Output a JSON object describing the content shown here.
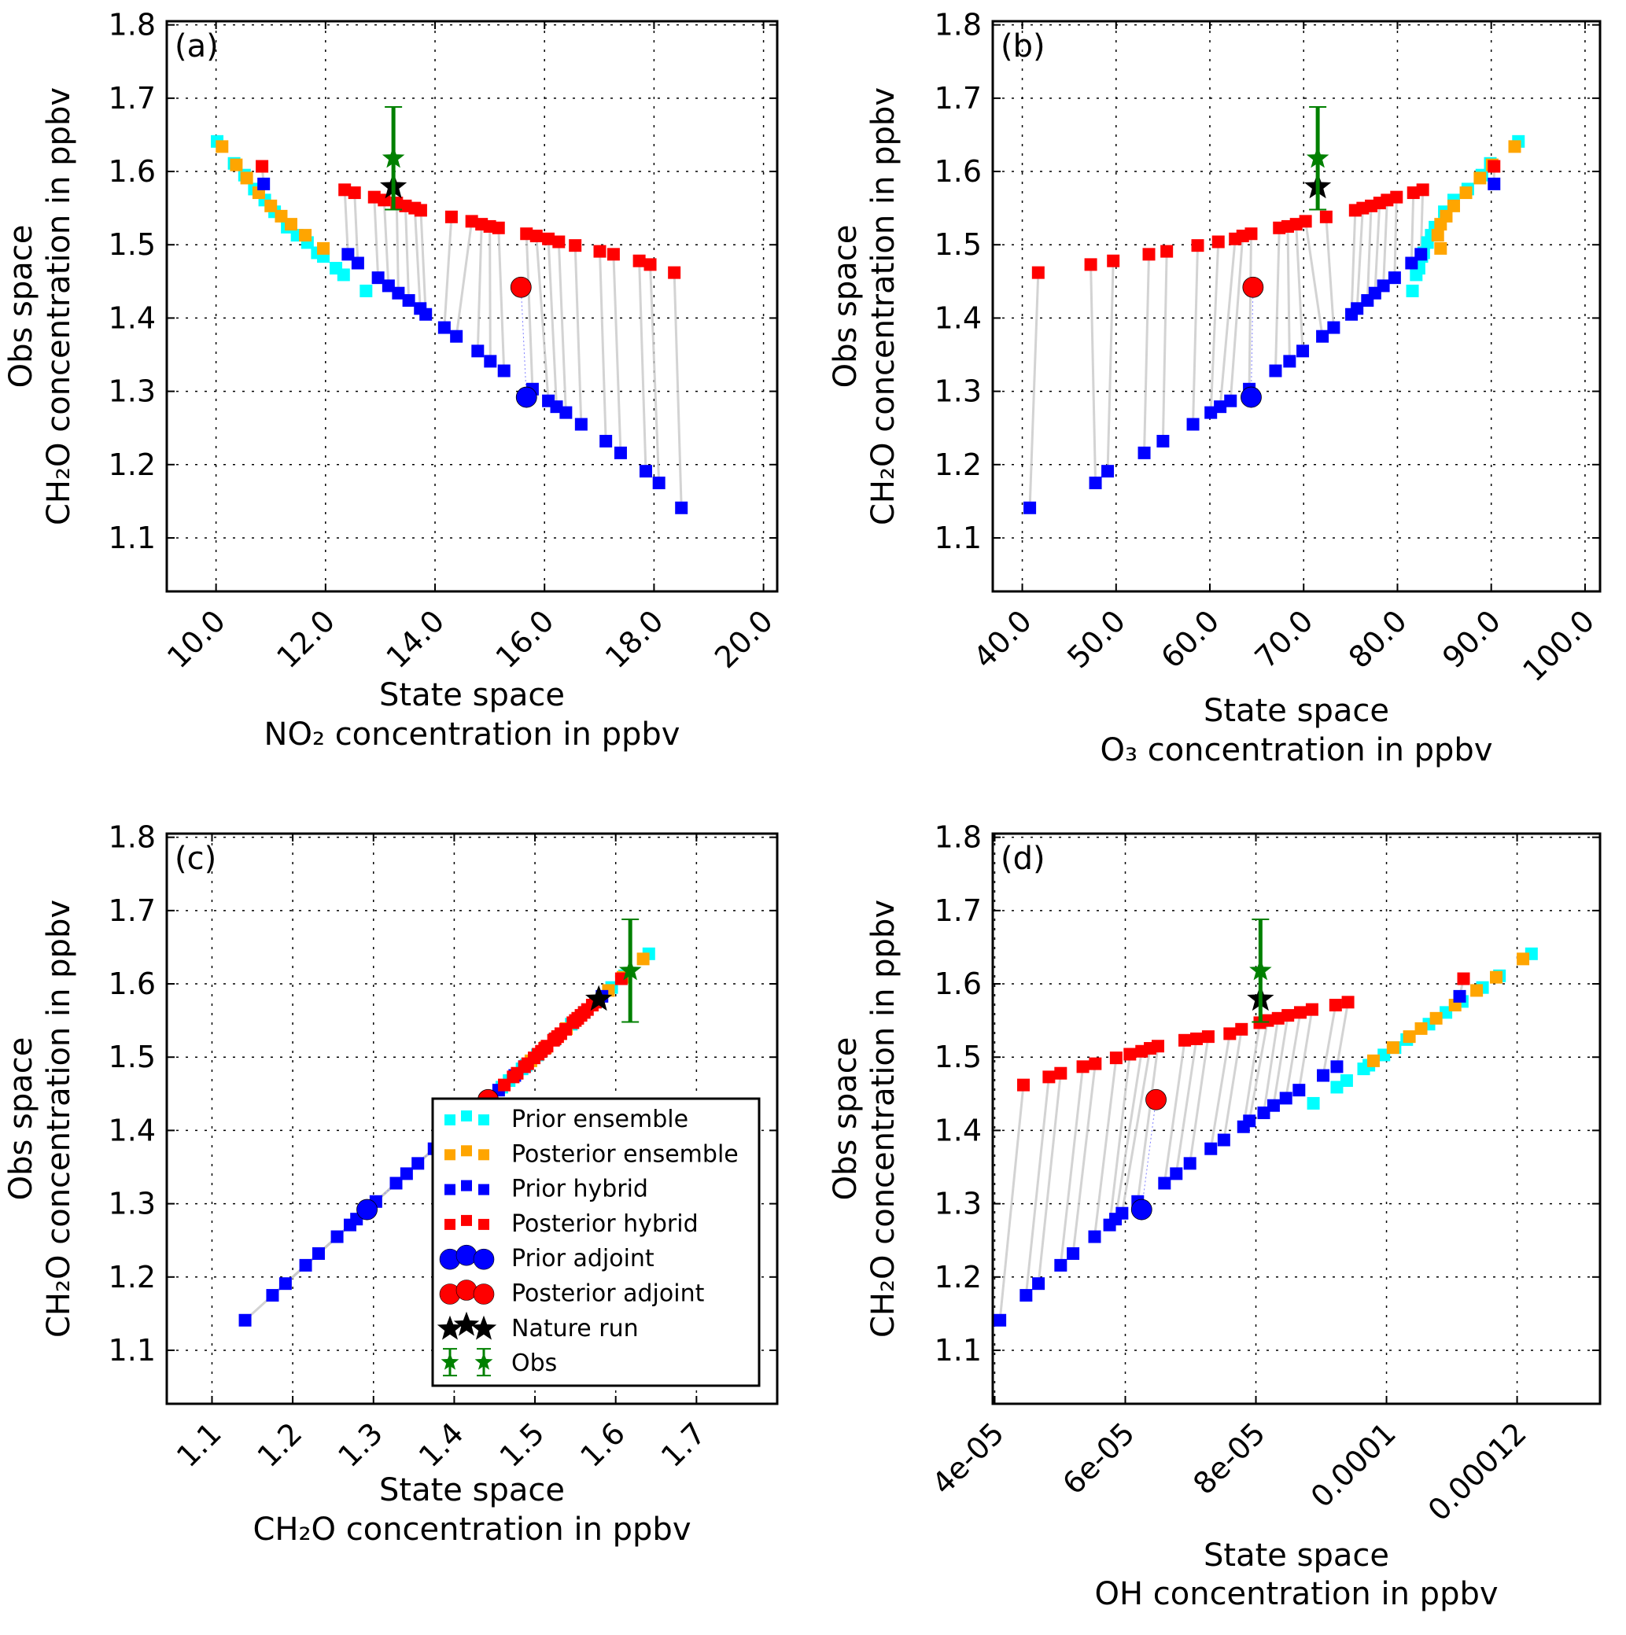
{
  "colors": {
    "prior_ensemble": "#00ffff",
    "posterior_ensemble": "#ffa500",
    "prior_hybrid": "#0000ff",
    "posterior_hybrid": "#ff0000",
    "prior_adjoint": "#0000ff",
    "posterior_adjoint": "#ff0000",
    "nature_run": "#000000",
    "obs": "#008000",
    "connector": "#c8c8c8"
  },
  "chart_data": [
    {
      "panel_label": "(a)",
      "type": "scatter",
      "grid": true,
      "xlabel": [
        "State space",
        "NO₂ concentration in ppbv"
      ],
      "ylabel": [
        "Obs space",
        "CH₂O concentration in ppbv"
      ],
      "xlim": [
        9.1,
        20.25
      ],
      "ylim": [
        1.027,
        1.805
      ],
      "xticks": [
        10,
        12,
        14,
        16,
        18,
        20
      ],
      "xtick_labels": [
        "10.0",
        "12.0",
        "14.0",
        "16.0",
        "18.0",
        "20.0"
      ],
      "yticks": [
        1.1,
        1.2,
        1.3,
        1.4,
        1.5,
        1.6,
        1.7,
        1.8
      ],
      "ytick_labels": [
        "1.1",
        "1.2",
        "1.3",
        "1.4",
        "1.5",
        "1.6",
        "1.7",
        "1.8"
      ],
      "series": [
        {
          "name": "Prior ensemble",
          "x": [
            10.02,
            10.33,
            10.52,
            10.7,
            10.89,
            11.07,
            11.3,
            11.48,
            11.67,
            11.85,
            11.96,
            12.19,
            12.33,
            12.74
          ],
          "y": [
            1.641,
            1.611,
            1.595,
            1.576,
            1.561,
            1.545,
            1.524,
            1.513,
            1.503,
            1.489,
            1.484,
            1.468,
            1.459,
            1.437
          ]
        },
        {
          "name": "Posterior ensemble",
          "x": [
            10.11,
            10.37,
            10.56,
            10.78,
            11.0,
            11.19,
            11.37,
            11.63,
            11.96
          ],
          "y": [
            1.634,
            1.609,
            1.591,
            1.571,
            1.553,
            1.539,
            1.528,
            1.513,
            1.495
          ]
        },
        {
          "name": "Prior hybrid",
          "x": [
            10.87,
            12.41,
            12.59,
            12.96,
            13.15,
            13.33,
            13.52,
            13.73,
            13.83,
            14.17,
            14.39,
            14.78,
            15.01,
            15.26,
            15.78,
            16.07,
            16.22,
            16.39,
            16.67,
            17.12,
            17.39,
            17.85,
            18.09,
            18.5
          ],
          "y": [
            1.583,
            1.487,
            1.475,
            1.455,
            1.444,
            1.434,
            1.424,
            1.413,
            1.405,
            1.387,
            1.375,
            1.355,
            1.341,
            1.328,
            1.303,
            1.287,
            1.279,
            1.271,
            1.255,
            1.232,
            1.216,
            1.191,
            1.175,
            1.141
          ]
        },
        {
          "name": "Posterior hybrid",
          "x": [
            10.84,
            12.35,
            12.53,
            12.89,
            13.07,
            13.3,
            13.46,
            13.63,
            13.74,
            14.3,
            14.67,
            14.85,
            15.0,
            15.16,
            15.67,
            15.85,
            16.07,
            16.26,
            16.56,
            17.01,
            17.26,
            17.73,
            17.93,
            18.37
          ],
          "y": [
            1.607,
            1.575,
            1.571,
            1.565,
            1.561,
            1.557,
            1.553,
            1.55,
            1.547,
            1.538,
            1.532,
            1.528,
            1.525,
            1.523,
            1.515,
            1.512,
            1.508,
            1.504,
            1.499,
            1.491,
            1.487,
            1.478,
            1.473,
            1.462
          ]
        },
        {
          "name": "Prior adjoint",
          "x": [
            15.67
          ],
          "y": [
            1.292
          ]
        },
        {
          "name": "Posterior adjoint",
          "x": [
            15.57
          ],
          "y": [
            1.442
          ]
        },
        {
          "name": "Nature run",
          "x": [
            13.24
          ],
          "y": [
            1.579
          ]
        },
        {
          "name": "Obs",
          "x": [
            13.24
          ],
          "y": [
            1.618
          ],
          "yerr": 0.07
        }
      ]
    },
    {
      "panel_label": "(b)",
      "type": "scatter",
      "grid": true,
      "xlabel": [
        "State space",
        "O₃ concentration in ppbv"
      ],
      "ylabel": [
        "Obs space",
        "CH₂O concentration in ppbv"
      ],
      "xlim": [
        36.85,
        101.6
      ],
      "ylim": [
        1.027,
        1.805
      ],
      "xticks": [
        40,
        50,
        60,
        70,
        80,
        90,
        100
      ],
      "xtick_labels": [
        "40.0",
        "50.0",
        "60.0",
        "70.0",
        "80.0",
        "90.0",
        "100.0"
      ],
      "yticks": [
        1.1,
        1.2,
        1.3,
        1.4,
        1.5,
        1.6,
        1.7,
        1.8
      ],
      "ytick_labels": [
        "1.1",
        "1.2",
        "1.3",
        "1.4",
        "1.5",
        "1.6",
        "1.7",
        "1.8"
      ],
      "series": [
        {
          "name": "Prior ensemble",
          "x": [
            92.9,
            89.9,
            89.0,
            87.5,
            86.0,
            85.0,
            84.0,
            83.6,
            83.2,
            82.8,
            82.6,
            82.3,
            82.0,
            81.6
          ],
          "y": [
            1.641,
            1.611,
            1.595,
            1.576,
            1.561,
            1.545,
            1.524,
            1.513,
            1.503,
            1.489,
            1.484,
            1.468,
            1.459,
            1.437
          ]
        },
        {
          "name": "Posterior ensemble",
          "x": [
            92.5,
            90.1,
            88.8,
            87.3,
            86.0,
            85.2,
            84.6,
            84.3,
            84.6
          ],
          "y": [
            1.634,
            1.609,
            1.591,
            1.571,
            1.553,
            1.539,
            1.528,
            1.513,
            1.495
          ]
        },
        {
          "name": "Prior hybrid",
          "x": [
            90.3,
            82.5,
            81.5,
            79.7,
            78.5,
            77.6,
            76.8,
            75.7,
            75.1,
            73.2,
            72.0,
            69.9,
            68.5,
            67.0,
            64.2,
            62.2,
            61.1,
            60.1,
            58.2,
            55.0,
            53.0,
            49.1,
            47.8,
            40.8
          ],
          "y": [
            1.583,
            1.487,
            1.475,
            1.455,
            1.444,
            1.434,
            1.424,
            1.413,
            1.405,
            1.387,
            1.375,
            1.355,
            1.341,
            1.328,
            1.303,
            1.287,
            1.279,
            1.271,
            1.255,
            1.232,
            1.216,
            1.191,
            1.175,
            1.141
          ]
        },
        {
          "name": "Posterior hybrid",
          "x": [
            90.3,
            82.7,
            81.7,
            79.9,
            78.9,
            78.1,
            77.2,
            76.3,
            75.5,
            72.4,
            70.2,
            69.2,
            68.3,
            67.4,
            64.4,
            63.5,
            62.7,
            60.9,
            58.7,
            55.4,
            53.5,
            49.7,
            47.3,
            41.7
          ],
          "y": [
            1.607,
            1.575,
            1.571,
            1.565,
            1.561,
            1.557,
            1.553,
            1.55,
            1.547,
            1.538,
            1.532,
            1.528,
            1.525,
            1.523,
            1.515,
            1.512,
            1.508,
            1.504,
            1.499,
            1.491,
            1.487,
            1.478,
            1.473,
            1.462
          ]
        },
        {
          "name": "Prior adjoint",
          "x": [
            64.4
          ],
          "y": [
            1.292
          ]
        },
        {
          "name": "Posterior adjoint",
          "x": [
            64.6
          ],
          "y": [
            1.442
          ]
        },
        {
          "name": "Nature run",
          "x": [
            71.5
          ],
          "y": [
            1.579
          ]
        },
        {
          "name": "Obs",
          "x": [
            71.5
          ],
          "y": [
            1.618
          ],
          "yerr": 0.07
        }
      ]
    },
    {
      "panel_label": "(c)",
      "type": "scatter",
      "grid": true,
      "xlabel": [
        "State space",
        "CH₂O concentration in ppbv"
      ],
      "ylabel": [
        "Obs space",
        "CH₂O concentration in ppbv"
      ],
      "xlim": [
        1.044,
        1.8
      ],
      "ylim": [
        1.027,
        1.805
      ],
      "xticks": [
        1.1,
        1.2,
        1.3,
        1.4,
        1.5,
        1.6,
        1.7
      ],
      "xtick_labels": [
        "1.1",
        "1.2",
        "1.3",
        "1.4",
        "1.5",
        "1.6",
        "1.7"
      ],
      "yticks": [
        1.1,
        1.2,
        1.3,
        1.4,
        1.5,
        1.6,
        1.7,
        1.8
      ],
      "ytick_labels": [
        "1.1",
        "1.2",
        "1.3",
        "1.4",
        "1.5",
        "1.6",
        "1.7",
        "1.8"
      ],
      "legend": {
        "position": "lower-right"
      },
      "series": [
        {
          "name": "Prior ensemble",
          "x": [
            1.641,
            1.611,
            1.595,
            1.576,
            1.561,
            1.545,
            1.524,
            1.513,
            1.503,
            1.489,
            1.484,
            1.468,
            1.459,
            1.437
          ],
          "y": [
            1.641,
            1.611,
            1.595,
            1.576,
            1.561,
            1.545,
            1.524,
            1.513,
            1.503,
            1.489,
            1.484,
            1.468,
            1.459,
            1.437
          ]
        },
        {
          "name": "Posterior ensemble",
          "x": [
            1.634,
            1.609,
            1.591,
            1.571,
            1.553,
            1.539,
            1.528,
            1.513,
            1.495
          ],
          "y": [
            1.634,
            1.609,
            1.591,
            1.571,
            1.553,
            1.539,
            1.528,
            1.513,
            1.495
          ]
        },
        {
          "name": "Prior hybrid",
          "x": [
            1.583,
            1.487,
            1.475,
            1.455,
            1.444,
            1.434,
            1.424,
            1.413,
            1.405,
            1.387,
            1.375,
            1.355,
            1.341,
            1.328,
            1.303,
            1.287,
            1.279,
            1.271,
            1.255,
            1.232,
            1.216,
            1.191,
            1.175,
            1.141
          ],
          "y": [
            1.583,
            1.487,
            1.475,
            1.455,
            1.444,
            1.434,
            1.424,
            1.413,
            1.405,
            1.387,
            1.375,
            1.355,
            1.341,
            1.328,
            1.303,
            1.287,
            1.279,
            1.271,
            1.255,
            1.232,
            1.216,
            1.191,
            1.175,
            1.141
          ]
        },
        {
          "name": "Posterior hybrid",
          "x": [
            1.607,
            1.575,
            1.571,
            1.565,
            1.561,
            1.557,
            1.553,
            1.55,
            1.547,
            1.538,
            1.532,
            1.528,
            1.525,
            1.523,
            1.515,
            1.512,
            1.508,
            1.504,
            1.499,
            1.491,
            1.487,
            1.478,
            1.473,
            1.462
          ],
          "y": [
            1.607,
            1.575,
            1.571,
            1.565,
            1.561,
            1.557,
            1.553,
            1.55,
            1.547,
            1.538,
            1.532,
            1.528,
            1.525,
            1.523,
            1.515,
            1.512,
            1.508,
            1.504,
            1.499,
            1.491,
            1.487,
            1.478,
            1.473,
            1.462
          ]
        },
        {
          "name": "Prior adjoint",
          "x": [
            1.292
          ],
          "y": [
            1.292
          ]
        },
        {
          "name": "Posterior adjoint",
          "x": [
            1.442
          ],
          "y": [
            1.442
          ]
        },
        {
          "name": "Nature run",
          "x": [
            1.579
          ],
          "y": [
            1.579
          ]
        },
        {
          "name": "Obs",
          "x": [
            1.618
          ],
          "y": [
            1.618
          ],
          "yerr": 0.07
        }
      ]
    },
    {
      "panel_label": "(d)",
      "type": "scatter",
      "grid": true,
      "xlabel": [
        "State space",
        "OH concentration in ppbv"
      ],
      "ylabel": [
        "Obs space",
        "CH₂O concentration in ppbv"
      ],
      "xlim": [
        3.97e-05,
        0.0001327
      ],
      "ylim": [
        1.027,
        1.805
      ],
      "xticks": [
        4e-05,
        6e-05,
        8e-05,
        0.0001,
        0.00012
      ],
      "xtick_labels": [
        "4e-05",
        "6e-05",
        "8e-05",
        "0.0001",
        "0.00012"
      ],
      "yticks": [
        1.1,
        1.2,
        1.3,
        1.4,
        1.5,
        1.6,
        1.7,
        1.8
      ],
      "ytick_labels": [
        "1.1",
        "1.2",
        "1.3",
        "1.4",
        "1.5",
        "1.6",
        "1.7",
        "1.8"
      ],
      "series": [
        {
          "name": "Prior ensemble",
          "x": [
            0.0001222,
            0.0001173,
            0.0001147,
            0.0001116,
            0.0001091,
            0.0001065,
            0.0001031,
            0.0001013,
            9.96e-05,
            9.73e-05,
            9.65e-05,
            9.39e-05,
            9.24e-05,
            8.88e-05
          ],
          "y": [
            1.641,
            1.611,
            1.595,
            1.576,
            1.561,
            1.545,
            1.524,
            1.513,
            1.503,
            1.489,
            1.484,
            1.468,
            1.459,
            1.437
          ]
        },
        {
          "name": "Posterior ensemble",
          "x": [
            0.0001209,
            0.0001168,
            0.0001138,
            0.0001105,
            0.0001076,
            0.0001053,
            0.0001035,
            0.000101,
            9.8e-05
          ],
          "y": [
            1.634,
            1.609,
            1.591,
            1.571,
            1.553,
            1.539,
            1.528,
            1.513,
            1.495
          ]
        },
        {
          "name": "Prior hybrid",
          "x": [
            0.0001112,
            9.24e-05,
            9.03e-05,
            8.66e-05,
            8.46e-05,
            8.27e-05,
            8.12e-05,
            7.9e-05,
            7.81e-05,
            7.51e-05,
            7.31e-05,
            6.99e-05,
            6.78e-05,
            6.6e-05,
            6.19e-05,
            5.95e-05,
            5.85e-05,
            5.76e-05,
            5.53e-05,
            5.2e-05,
            5.01e-05,
            4.67e-05,
            4.48e-05,
            4.08e-05
          ],
          "y": [
            1.583,
            1.487,
            1.475,
            1.455,
            1.444,
            1.434,
            1.424,
            1.413,
            1.405,
            1.387,
            1.375,
            1.355,
            1.341,
            1.328,
            1.303,
            1.287,
            1.279,
            1.271,
            1.255,
            1.232,
            1.216,
            1.191,
            1.175,
            1.141
          ]
        },
        {
          "name": "Posterior hybrid",
          "x": [
            0.0001118,
            9.41e-05,
            9.22e-05,
            8.86e-05,
            8.68e-05,
            8.49e-05,
            8.34e-05,
            8.18e-05,
            8.06e-05,
            7.78e-05,
            7.6e-05,
            7.27e-05,
            7.09e-05,
            6.91e-05,
            6.5e-05,
            6.38e-05,
            6.25e-05,
            6.07e-05,
            5.86e-05,
            5.54e-05,
            5.35e-05,
            5.01e-05,
            4.83e-05,
            4.44e-05
          ],
          "y": [
            1.607,
            1.575,
            1.571,
            1.565,
            1.561,
            1.557,
            1.553,
            1.55,
            1.547,
            1.538,
            1.532,
            1.528,
            1.525,
            1.523,
            1.515,
            1.512,
            1.508,
            1.504,
            1.499,
            1.491,
            1.487,
            1.478,
            1.473,
            1.462
          ]
        },
        {
          "name": "Prior adjoint",
          "x": [
            6.25e-05
          ],
          "y": [
            1.292
          ]
        },
        {
          "name": "Posterior adjoint",
          "x": [
            6.47e-05
          ],
          "y": [
            1.442
          ]
        },
        {
          "name": "Nature run",
          "x": [
            8.07e-05
          ],
          "y": [
            1.579
          ]
        },
        {
          "name": "Obs",
          "x": [
            8.07e-05
          ],
          "y": [
            1.618
          ],
          "yerr": 0.07
        }
      ]
    }
  ]
}
